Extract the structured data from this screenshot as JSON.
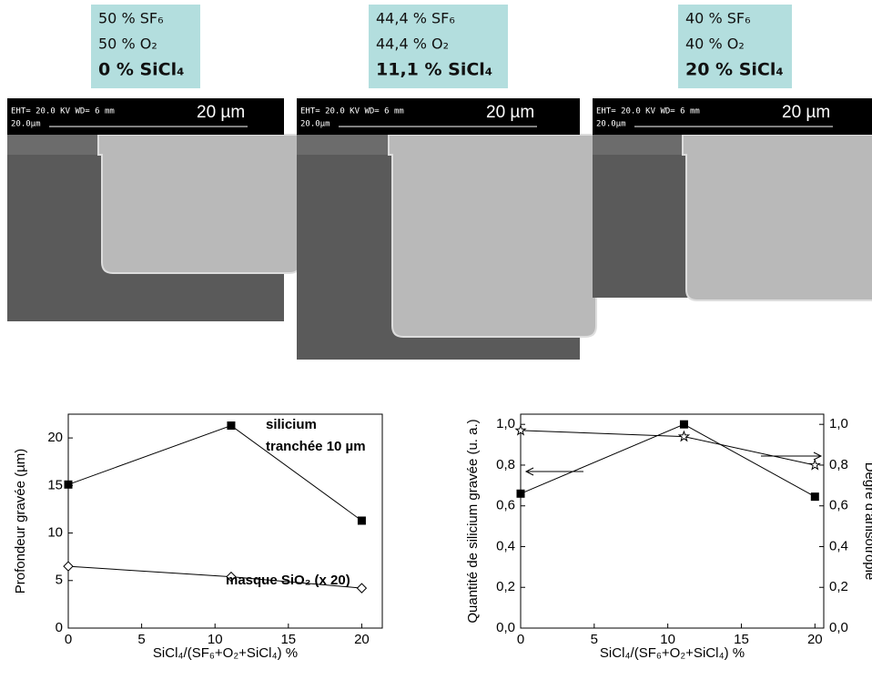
{
  "panels": [
    {
      "label": [
        "50 % SF₆",
        "50 % O₂",
        "0 % SiCl₄"
      ],
      "sem": {
        "info": "EHT= 20.0 KV   WD= 6    mm",
        "scale": "20.0µm",
        "bar": "20 µm"
      }
    },
    {
      "label": [
        "44,4 % SF₆",
        "44,4 % O₂",
        "11,1 % SiCl₄"
      ],
      "sem": {
        "info": "EHT= 20.0 KV   WD= 6    mm",
        "scale": "20.0µm",
        "bar": "20 µm"
      }
    },
    {
      "label": [
        "40 % SF₆",
        "40 % O₂",
        "20 % SiCl₄"
      ],
      "sem": {
        "info": "EHT= 20.0 KV   WD= 6    mm",
        "scale": "20.0µm",
        "bar": "20 µm"
      }
    }
  ],
  "chart_data": [
    {
      "type": "line",
      "x_label": "SiCl₄/(SF₆+O₂+SiCl₄) %",
      "y_label": "Profondeur gravée (µm)",
      "x": [
        0,
        11.1,
        20
      ],
      "series": [
        {
          "name": "silicium",
          "color": "#000000",
          "marker": "square",
          "filled": true,
          "values": [
            15.1,
            21.3,
            11.3
          ]
        },
        {
          "name": "masque SiO₂ (x 20)",
          "color": "#000000",
          "marker": "diamond",
          "filled": false,
          "values": [
            6.5,
            5.4,
            4.2
          ]
        }
      ],
      "annotations": [
        "silicium",
        "tranchée 10 µm",
        "masque SiO₂ (x 20)"
      ],
      "xlim": [
        0,
        21.4
      ],
      "xticks": [
        0,
        5,
        10,
        15,
        20
      ],
      "ylim": [
        0,
        22.5
      ],
      "yticks": [
        0,
        5,
        10,
        15,
        20
      ]
    },
    {
      "type": "line",
      "x_label": "SiCl₄/(SF₆+O₂+SiCl₄) %",
      "y_label": "Quantité de silicium gravée (u. a.)",
      "y2_label": "Degré d'anisotropie",
      "x": [
        0,
        11.1,
        20
      ],
      "series": [
        {
          "name": "Quantité de silicium gravée",
          "color": "#000000",
          "marker": "square",
          "filled": true,
          "values": [
            0.66,
            1.0,
            0.645
          ]
        },
        {
          "name": "Degré d'anisotropie",
          "color": "#000000",
          "marker": "star",
          "filled": false,
          "axis": "y2",
          "values": [
            0.97,
            0.94,
            0.8
          ]
        }
      ],
      "xlim": [
        0,
        20.6
      ],
      "xticks": [
        0,
        5,
        10,
        15,
        20
      ],
      "ylim": [
        0,
        1.05
      ],
      "yticks": [
        {
          "value": 0,
          "label": "0,0"
        },
        {
          "value": 0.2,
          "label": "0,2"
        },
        {
          "value": 0.4,
          "label": "0,4"
        },
        {
          "value": 0.6,
          "label": "0,6"
        },
        {
          "value": 0.8,
          "label": "0,8"
        },
        {
          "value": 1.0,
          "label": "1,0"
        }
      ],
      "y2lim": [
        0,
        1.05
      ],
      "y2ticks": [
        {
          "value": 0,
          "label": "0,0"
        },
        {
          "value": 0.2,
          "label": "0,2"
        },
        {
          "value": 0.4,
          "label": "0,4"
        },
        {
          "value": 0.6,
          "label": "0,6"
        },
        {
          "value": 0.8,
          "label": "0,8"
        },
        {
          "value": 1.0,
          "label": "1,0"
        }
      ]
    }
  ]
}
